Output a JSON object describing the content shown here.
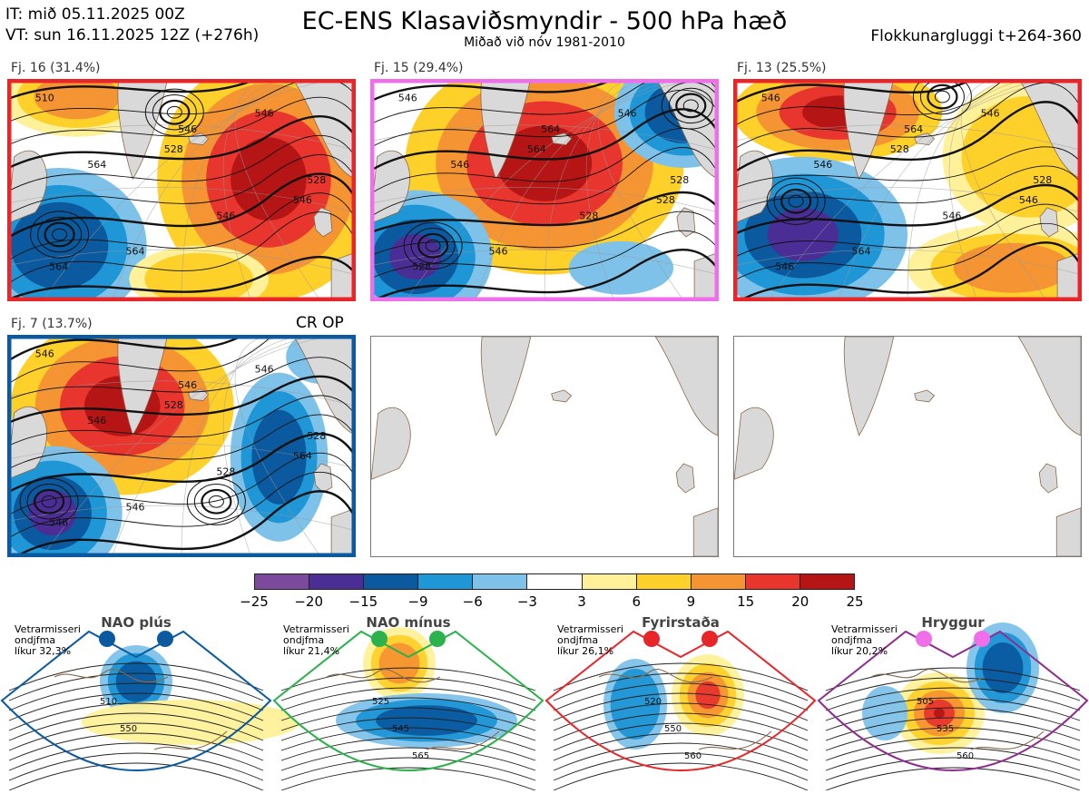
{
  "header": {
    "it_line": "IT: mið 05.11.2025 00Z",
    "vt_line": "VT: sun 16.11.2025 12Z  (+276h)",
    "title": "EC-ENS Klasaviðsmyndir - 500 hPa hæð",
    "subtitle": "Miðað við nóv 1981-2010",
    "window": "Flokkunargluggi t+264-360"
  },
  "clusters": [
    {
      "label": "Fj. 16 (31.4%)",
      "border": "#e8262a",
      "contours": [
        "510",
        "528",
        "546",
        "564",
        "546",
        "564",
        "546",
        "564",
        "546",
        "528"
      ]
    },
    {
      "label": "Fj. 15 (29.4%)",
      "border": "#ee6fe9",
      "contours": [
        "546",
        "564",
        "528",
        "546",
        "546",
        "546",
        "528",
        "528",
        "564",
        "528"
      ]
    },
    {
      "label": "Fj. 13 (25.5%)",
      "border": "#e8262a",
      "contours": [
        "546",
        "528",
        "546",
        "564",
        "546",
        "546",
        "546",
        "546",
        "564",
        "528"
      ]
    },
    {
      "label": "Fj. 7 (13.7%)",
      "border": "#0b5aa0",
      "contours": [
        "546",
        "528",
        "564",
        "546",
        "546",
        "546",
        "528",
        "546",
        "546",
        "528"
      ]
    }
  ],
  "cr_op": "CR OP",
  "colors": {
    "red": "#e8262a",
    "pink": "#ee6fe9",
    "blue": "#0b5aa0",
    "green": "#2bb24c",
    "purple": "#8e2e8e",
    "land": "#d9d9d9",
    "coast": "#8b6a4a"
  },
  "chart_data": {
    "type": "heatmap",
    "title": "EC-ENS Klasaviðsmyndir - 500 hPa hæð",
    "colorbar": {
      "ticks": [
        "−25",
        "−20",
        "−15",
        "−9",
        "−6",
        "−3",
        "3",
        "6",
        "9",
        "15",
        "20",
        "25"
      ],
      "colors": [
        "#7b4a9d",
        "#4b2e95",
        "#0b5aa0",
        "#1f96d5",
        "#7ec2ea",
        "#ffffff",
        "#fff19a",
        "#fed02a",
        "#f59433",
        "#e8352e",
        "#b51515"
      ]
    },
    "regimes": [
      {
        "name": "NAO plús",
        "note": [
          "Vetrarmisseri",
          "ondjfma",
          "líkur 32,3%"
        ],
        "color": "#0b5aa0",
        "labels": [
          "510",
          "550"
        ]
      },
      {
        "name": "NAO mínus",
        "note": [
          "Vetrarmisseri",
          "ondjfma",
          "líkur 21,4%"
        ],
        "color": "#2bb24c",
        "labels": [
          "525",
          "545",
          "565"
        ]
      },
      {
        "name": "Fyrirstaða",
        "note": [
          "Vetrarmisseri",
          "ondjfma",
          "líkur 26,1%"
        ],
        "color": "#e8262a",
        "labels": [
          "520",
          "550",
          "560"
        ]
      },
      {
        "name": "Hryggur",
        "note": [
          "Vetrarmisseri",
          "ondjfma",
          "líkur 20,2%"
        ],
        "color": "#8e2e8e",
        "labels": [
          "505",
          "535",
          "560"
        ]
      }
    ]
  }
}
